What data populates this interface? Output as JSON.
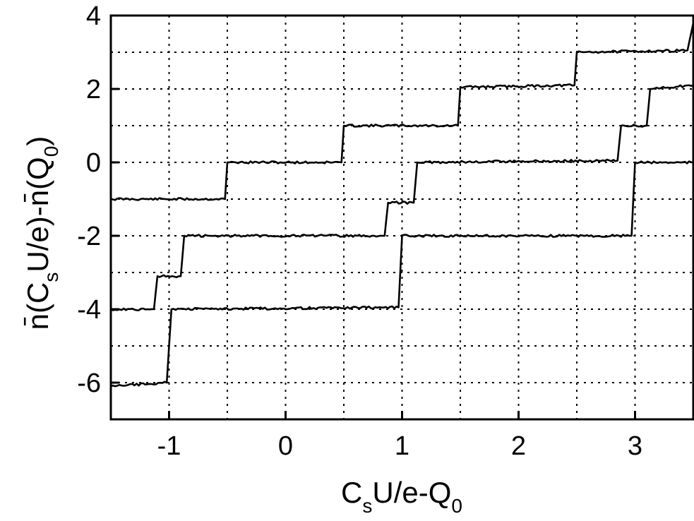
{
  "chart_data": {
    "type": "line",
    "title": "",
    "xlabel": "C_sU/e-Q_0",
    "ylabel": "n̄(C_sU/e)-n̄(Q_0)",
    "xlabel_parts": [
      "C",
      "s",
      "U/e-Q",
      "0"
    ],
    "ylabel_parts": [
      "n̄(C",
      "s",
      "U/e)-n̄(Q",
      "0",
      ")"
    ],
    "xlim": [
      -1.5,
      3.5
    ],
    "ylim": [
      -7,
      4
    ],
    "xticks": [
      -1,
      0,
      1,
      2,
      3
    ],
    "yticks": [
      -6,
      -4,
      -2,
      0,
      2,
      4
    ],
    "xtick_labels": [
      "-1",
      "0",
      "1",
      "2",
      "3"
    ],
    "ytick_labels": [
      "-6",
      "-4",
      "-2",
      "0",
      "2",
      "4"
    ],
    "grid": true,
    "grid_step_x": 0.5,
    "grid_step_y": 1,
    "line_color": "#000000",
    "series": [
      {
        "x": [
          -1.5,
          -0.52,
          -0.5,
          0.48,
          0.5,
          1.48,
          1.5,
          2.48,
          2.5,
          3.45,
          3.5
        ],
        "y": [
          -1,
          -1,
          0,
          0,
          1,
          1,
          2.05,
          2.1,
          3,
          3.05,
          3.8
        ]
      },
      {
        "x": [
          -1.5,
          -1.13,
          -1.1,
          -0.9,
          -0.87,
          0.85,
          0.88,
          1.1,
          1.13,
          2.85,
          2.88,
          3.1,
          3.13,
          3.5
        ],
        "y": [
          -4,
          -4,
          -3.1,
          -3.1,
          -2,
          -2,
          -1.1,
          -1.1,
          0,
          0.05,
          1,
          1,
          2,
          2.1
        ]
      },
      {
        "x": [
          -1.5,
          -1.02,
          -0.98,
          0.97,
          1.0,
          2.97,
          3.0,
          3.5
        ],
        "y": [
          -6.1,
          -6,
          -4,
          -3.95,
          -2,
          -2.0,
          0,
          0
        ]
      }
    ]
  }
}
